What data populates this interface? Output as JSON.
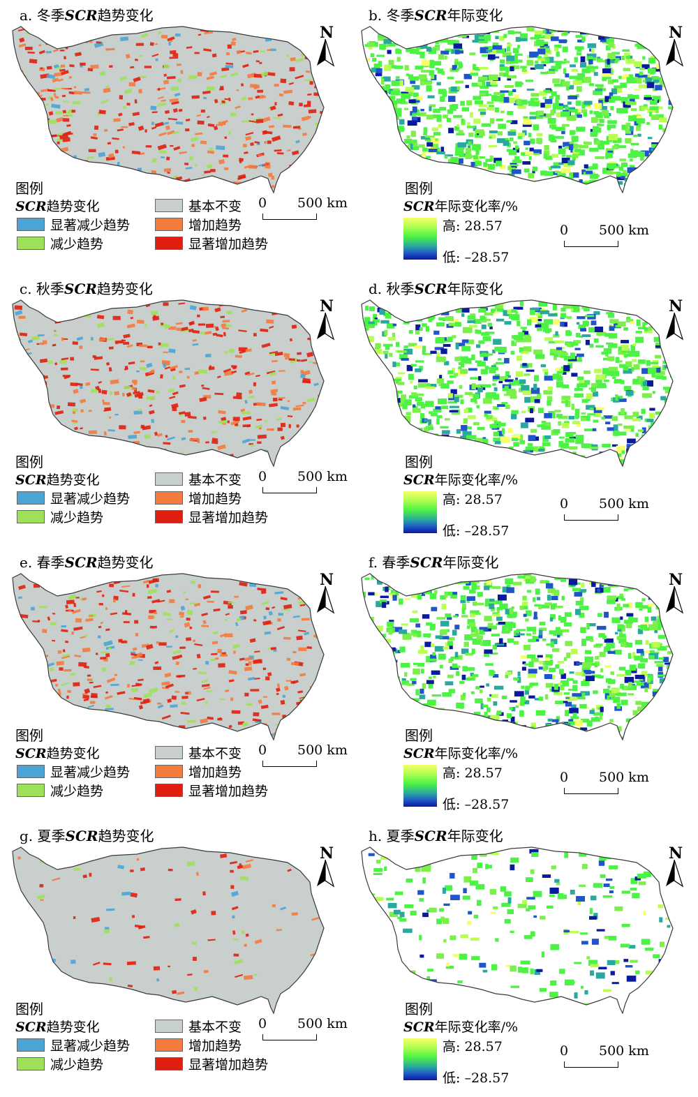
{
  "panels": [
    {
      "id": "a",
      "prefix": "a. 冬季",
      "italic": "SCR",
      "suffix": "趋势变化",
      "kind": "trend",
      "density": 0.55
    },
    {
      "id": "b",
      "prefix": "b. 冬季",
      "italic": "SCR",
      "suffix": "年际变化",
      "kind": "rate",
      "density": 0.85
    },
    {
      "id": "c",
      "prefix": "c. 秋季",
      "italic": "SCR",
      "suffix": "趋势变化",
      "kind": "trend",
      "density": 0.5
    },
    {
      "id": "d",
      "prefix": "d. 秋季",
      "italic": "SCR",
      "suffix": "年际变化",
      "kind": "rate",
      "density": 0.75
    },
    {
      "id": "e",
      "prefix": "e. 春季",
      "italic": "SCR",
      "suffix": "趋势变化",
      "kind": "trend",
      "density": 0.5
    },
    {
      "id": "f",
      "prefix": "f. 春季",
      "italic": "SCR",
      "suffix": "年际变化",
      "kind": "rate",
      "density": 0.7
    },
    {
      "id": "g",
      "prefix": "g. 夏季",
      "italic": "SCR",
      "suffix": "趋势变化",
      "kind": "trend",
      "density": 0.12
    },
    {
      "id": "h",
      "prefix": "h. 夏季",
      "italic": "SCR",
      "suffix": "年际变化",
      "kind": "rate",
      "density": 0.2
    }
  ],
  "north_label": "N",
  "legend": {
    "title": "图例",
    "trend_sub_italic": "SCR",
    "trend_sub_rest": "趋势变化",
    "rate_sub_italic": "SCR",
    "rate_sub_rest": "年际变化率/%",
    "items": [
      {
        "label": "显著减少趋势",
        "color": "#4aa5d6"
      },
      {
        "label": "减少趋势",
        "color": "#9ee05a"
      },
      {
        "label": "基本不变",
        "color": "#c8cfcc"
      },
      {
        "label": "增加趋势",
        "color": "#f47a3e"
      },
      {
        "label": "显著增加趋势",
        "color": "#e01f10"
      }
    ],
    "rate_high": "高: 28.57",
    "rate_low": "低: –28.57"
  },
  "scale": {
    "zero": "0",
    "dist": "500 km"
  },
  "colors": {
    "base": "#c8cfcc",
    "outline": "#3a3a3a"
  }
}
